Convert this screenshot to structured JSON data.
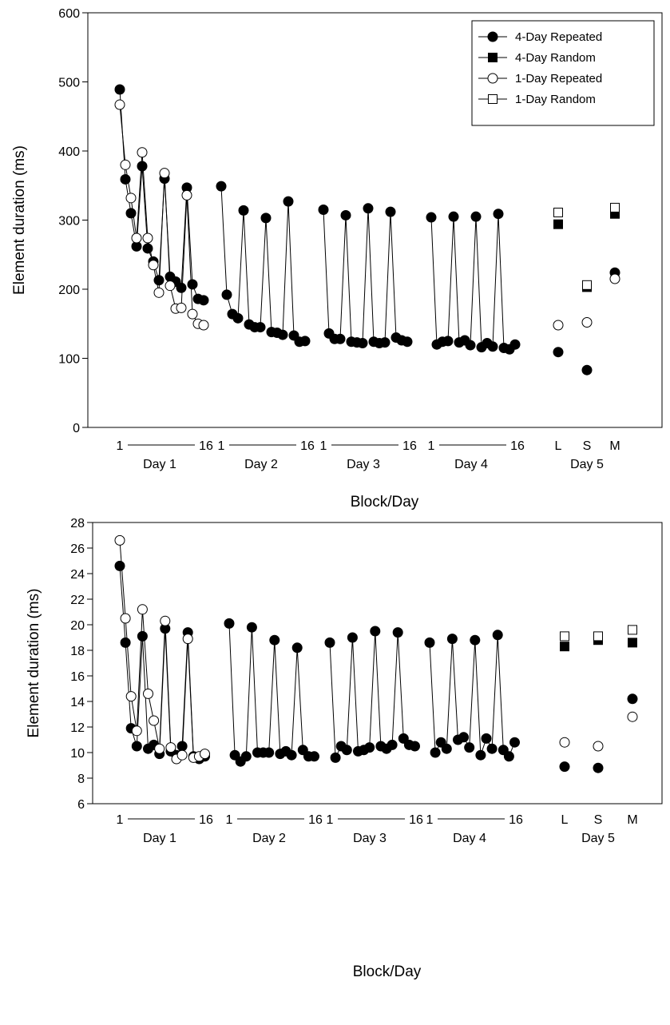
{
  "chart_data": [
    {
      "type": "line",
      "xlabel": "Block/Day",
      "ylabel": "Element duration (ms)",
      "ylim": [
        0,
        600
      ],
      "yticks": [
        0,
        100,
        200,
        300,
        400,
        500,
        600
      ],
      "x_groups": [
        {
          "name": "Day 1",
          "start": "1",
          "end": "16"
        },
        {
          "name": "Day 2",
          "start": "1",
          "end": "16"
        },
        {
          "name": "Day 3",
          "start": "1",
          "end": "16"
        },
        {
          "name": "Day 4",
          "start": "1",
          "end": "16"
        },
        {
          "name": "Day 5",
          "conditions": [
            "L",
            "S",
            "M"
          ]
        }
      ],
      "legend": {
        "position": "top-right",
        "entries": [
          "4-Day Repeated",
          "4-Day Random",
          "1-Day Repeated",
          "1-Day Random"
        ]
      },
      "series": [
        {
          "name": "4-Day Repeated",
          "marker": "filled-circle",
          "days": [
            [
              489,
              359,
              310,
              262,
              378,
              259,
              240,
              213,
              360,
              218,
              211,
              202,
              347,
              207,
              186,
              184
            ],
            [
              349,
              192,
              164,
              158,
              314,
              149,
              145,
              145,
              303,
              138,
              137,
              134,
              327,
              133,
              124,
              125
            ],
            [
              315,
              136,
              128,
              128,
              307,
              124,
              123,
              122,
              317,
              124,
              122,
              123,
              312,
              130,
              126,
              124
            ],
            [
              304,
              120,
              124,
              125,
              305,
              123,
              126,
              119,
              305,
              116,
              122,
              117,
              309,
              115,
              113,
              120
            ]
          ],
          "day5": {
            "L": 109,
            "S": 83,
            "M": 224
          }
        },
        {
          "name": "4-Day Random",
          "marker": "filled-square",
          "day5": {
            "L": 294,
            "S": 203,
            "M": 309
          }
        },
        {
          "name": "1-Day Repeated",
          "marker": "open-circle",
          "days": [
            [
              467,
              380,
              332,
              274,
              398,
              274,
              235,
              195,
              368,
              205,
              172,
              173,
              336,
              164,
              150,
              148
            ]
          ],
          "day5": {
            "L": 148,
            "S": 152,
            "M": 215
          }
        },
        {
          "name": "1-Day Random",
          "marker": "open-square",
          "day5": {
            "L": 311,
            "S": 206,
            "M": 318
          }
        }
      ]
    },
    {
      "type": "line",
      "xlabel": "Block/Day",
      "ylabel": "Element duration (ms)",
      "ylim": [
        6,
        28
      ],
      "yticks": [
        6,
        8,
        10,
        12,
        14,
        16,
        18,
        20,
        22,
        24,
        26,
        28
      ],
      "x_groups": [
        {
          "name": "Day 1",
          "start": "1",
          "end": "16"
        },
        {
          "name": "Day 2",
          "start": "1",
          "end": "16"
        },
        {
          "name": "Day 3",
          "start": "1",
          "end": "16"
        },
        {
          "name": "Day 4",
          "start": "1",
          "end": "16"
        },
        {
          "name": "Day 5",
          "conditions": [
            "L",
            "S",
            "M"
          ]
        }
      ],
      "series": [
        {
          "name": "4-Day Repeated",
          "marker": "filled-circle",
          "days": [
            [
              24.6,
              18.6,
              11.9,
              10.5,
              19.1,
              10.3,
              10.6,
              9.9,
              19.7,
              10.1,
              9.8,
              10.5,
              19.4,
              9.7,
              9.5,
              9.7
            ],
            [
              20.1,
              9.8,
              9.3,
              9.7,
              19.8,
              10.0,
              10.0,
              10.0,
              18.8,
              9.9,
              10.1,
              9.8,
              18.2,
              10.2,
              9.7,
              9.7
            ],
            [
              18.6,
              9.6,
              10.5,
              10.2,
              19.0,
              10.1,
              10.2,
              10.4,
              19.5,
              10.5,
              10.3,
              10.6,
              19.4,
              11.1,
              10.6,
              10.5
            ],
            [
              18.6,
              10.0,
              10.8,
              10.3,
              18.9,
              11.0,
              11.2,
              10.4,
              18.8,
              9.8,
              11.1,
              10.3,
              19.2,
              10.2,
              9.7,
              10.8
            ]
          ],
          "day5": {
            "L": 8.9,
            "S": 8.8,
            "M": 14.2
          }
        },
        {
          "name": "4-Day Random",
          "marker": "filled-square",
          "day5": {
            "L": 18.3,
            "S": 18.8,
            "M": 18.6
          }
        },
        {
          "name": "1-Day Repeated",
          "marker": "open-circle",
          "days": [
            [
              26.6,
              20.5,
              14.4,
              11.7,
              21.2,
              14.6,
              12.5,
              10.3,
              20.3,
              10.4,
              9.5,
              9.8,
              18.9,
              9.6,
              9.7,
              9.9
            ]
          ],
          "day5": {
            "L": 10.8,
            "S": 10.5,
            "M": 12.8
          }
        },
        {
          "name": "1-Day Random",
          "marker": "open-square",
          "day5": {
            "L": 19.1,
            "S": 19.1,
            "M": 19.6
          }
        }
      ]
    }
  ]
}
